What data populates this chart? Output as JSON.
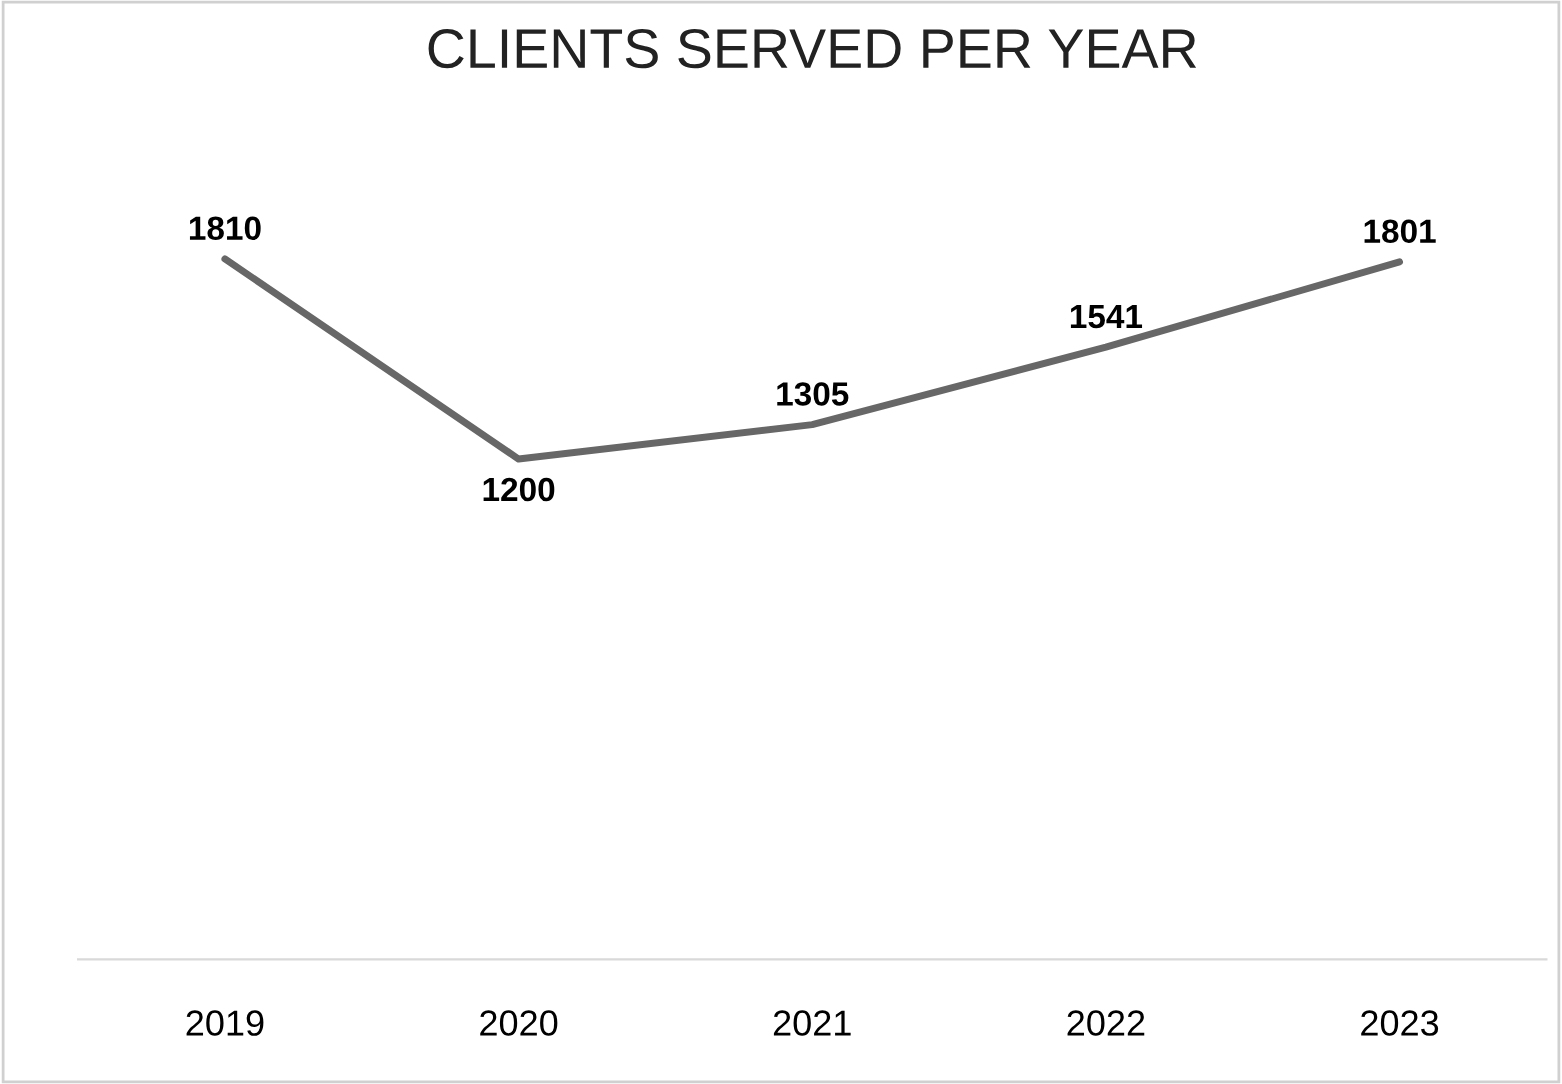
{
  "chart_data": {
    "type": "line",
    "title": "CLIENTS SERVED PER YEAR",
    "categories": [
      "2019",
      "2020",
      "2021",
      "2022",
      "2023"
    ],
    "series": [
      {
        "color": "#676767",
        "values": [
          1810,
          1200,
          1305,
          1541,
          1801
        ]
      }
    ],
    "data_labels": true,
    "tick_labels": "x",
    "grid": false,
    "legend": false,
    "marker": "none",
    "line_style": "solid"
  }
}
